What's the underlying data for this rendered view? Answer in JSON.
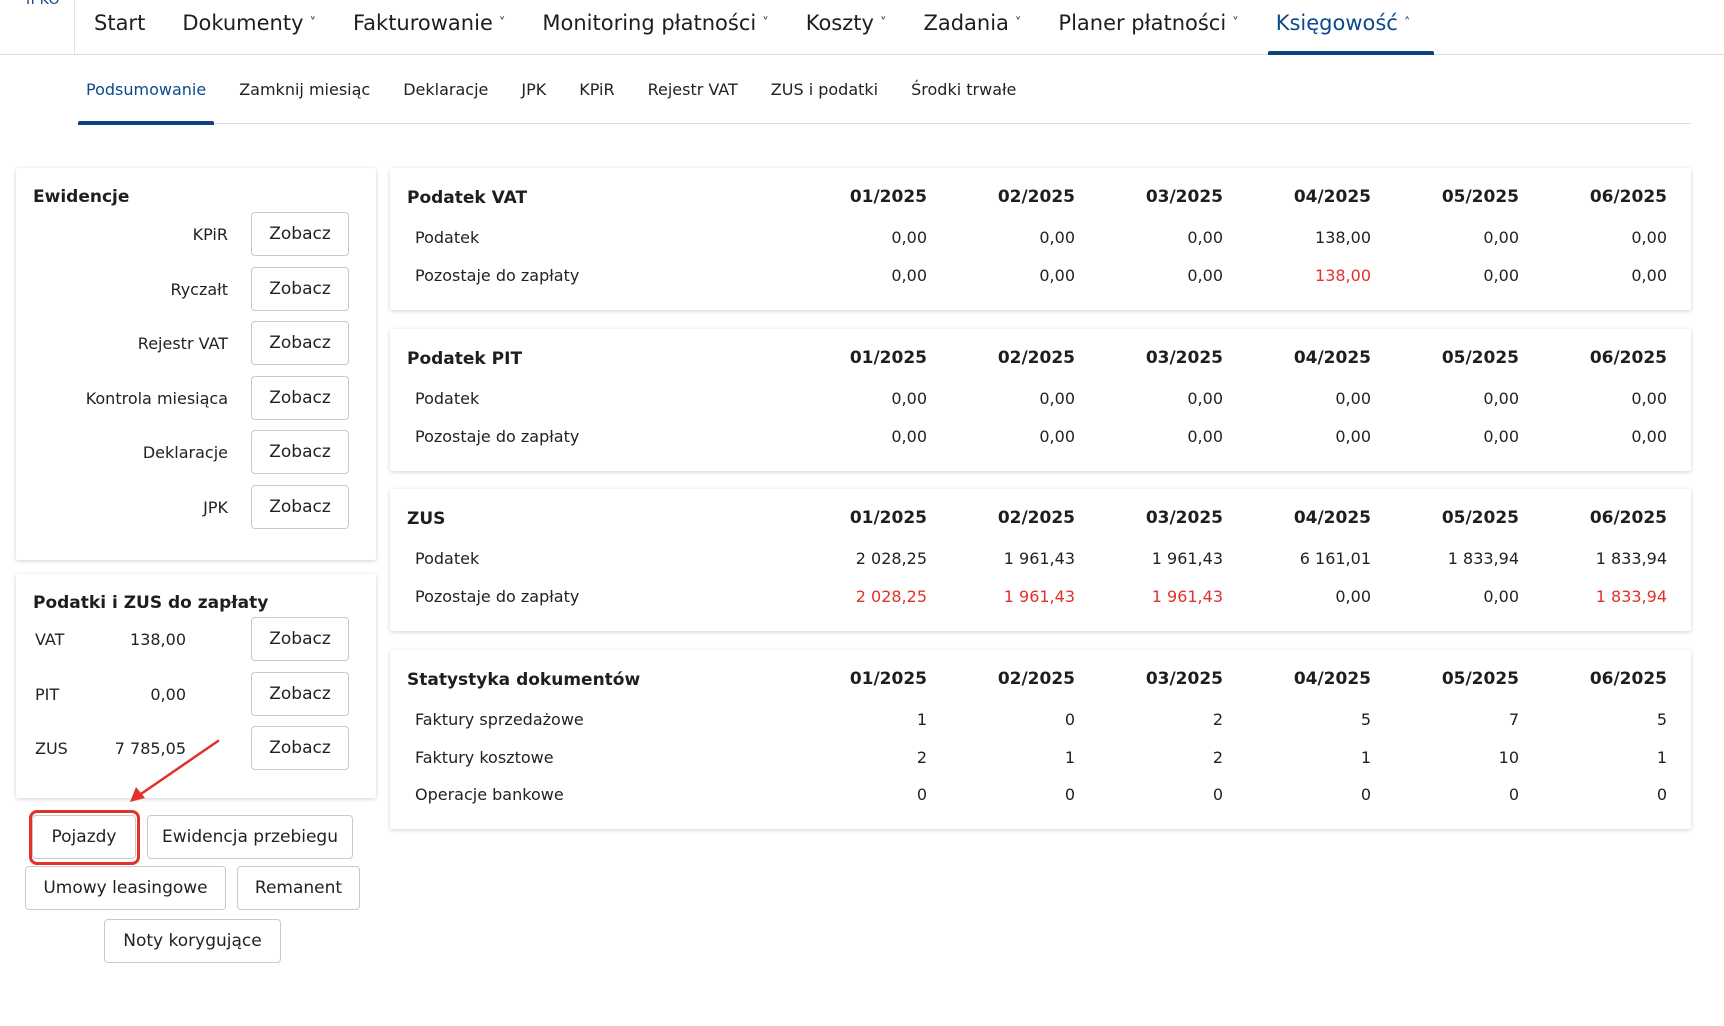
{
  "logo": "IPKO",
  "topnav": [
    {
      "label": "Start",
      "chevron": false,
      "active": false
    },
    {
      "label": "Dokumenty",
      "chevron": true,
      "active": false
    },
    {
      "label": "Fakturowanie",
      "chevron": true,
      "active": false
    },
    {
      "label": "Monitoring płatności",
      "chevron": true,
      "active": false
    },
    {
      "label": "Koszty",
      "chevron": true,
      "active": false
    },
    {
      "label": "Zadania",
      "chevron": true,
      "active": false
    },
    {
      "label": "Planer płatności",
      "chevron": true,
      "active": false
    },
    {
      "label": "Księgowość",
      "chevron": true,
      "active": true
    }
  ],
  "subnav": [
    {
      "label": "Podsumowanie",
      "active": true
    },
    {
      "label": "Zamknij miesiąc",
      "active": false
    },
    {
      "label": "Deklaracje",
      "active": false
    },
    {
      "label": "JPK",
      "active": false
    },
    {
      "label": "KPiR",
      "active": false
    },
    {
      "label": "Rejestr VAT",
      "active": false
    },
    {
      "label": "ZUS i podatki",
      "active": false
    },
    {
      "label": "Środki trwałe",
      "active": false
    }
  ],
  "ewidencje": {
    "title": "Ewidencje",
    "items": [
      {
        "label": "KPiR",
        "button": "Zobacz"
      },
      {
        "label": "Ryczałt",
        "button": "Zobacz"
      },
      {
        "label": "Rejestr VAT",
        "button": "Zobacz"
      },
      {
        "label": "Kontrola miesiąca",
        "button": "Zobacz"
      },
      {
        "label": "Deklaracje",
        "button": "Zobacz"
      },
      {
        "label": "JPK",
        "button": "Zobacz"
      }
    ]
  },
  "podatki": {
    "title": "Podatki i ZUS do zapłaty",
    "items": [
      {
        "label": "VAT",
        "value": "138,00",
        "button": "Zobacz"
      },
      {
        "label": "PIT",
        "value": "0,00",
        "button": "Zobacz"
      },
      {
        "label": "ZUS",
        "value": "7 785,05",
        "button": "Zobacz"
      }
    ]
  },
  "buttons": {
    "pojazdy": "Pojazdy",
    "ewidencja_przebiegu": "Ewidencja przebiegu",
    "umowy_leasingowe": "Umowy leasingowe",
    "remanent": "Remanent",
    "noty_korygujace": "Noty korygujące"
  },
  "months": [
    "01/2025",
    "02/2025",
    "03/2025",
    "04/2025",
    "05/2025",
    "06/2025"
  ],
  "tables": [
    {
      "title": "Podatek VAT",
      "rows": [
        {
          "label": "Podatek",
          "values": [
            "0,00",
            "0,00",
            "0,00",
            "138,00",
            "0,00",
            "0,00"
          ],
          "red": [
            false,
            false,
            false,
            false,
            false,
            false
          ]
        },
        {
          "label": "Pozostaje do zapłaty",
          "values": [
            "0,00",
            "0,00",
            "0,00",
            "138,00",
            "0,00",
            "0,00"
          ],
          "red": [
            false,
            false,
            false,
            true,
            false,
            false
          ]
        }
      ]
    },
    {
      "title": "Podatek PIT",
      "rows": [
        {
          "label": "Podatek",
          "values": [
            "0,00",
            "0,00",
            "0,00",
            "0,00",
            "0,00",
            "0,00"
          ],
          "red": [
            false,
            false,
            false,
            false,
            false,
            false
          ]
        },
        {
          "label": "Pozostaje do zapłaty",
          "values": [
            "0,00",
            "0,00",
            "0,00",
            "0,00",
            "0,00",
            "0,00"
          ],
          "red": [
            false,
            false,
            false,
            false,
            false,
            false
          ]
        }
      ]
    },
    {
      "title": "ZUS",
      "rows": [
        {
          "label": "Podatek",
          "values": [
            "2 028,25",
            "1 961,43",
            "1 961,43",
            "6 161,01",
            "1 833,94",
            "1 833,94"
          ],
          "red": [
            false,
            false,
            false,
            false,
            false,
            false
          ]
        },
        {
          "label": "Pozostaje do zapłaty",
          "values": [
            "2 028,25",
            "1 961,43",
            "1 961,43",
            "0,00",
            "0,00",
            "1 833,94"
          ],
          "red": [
            true,
            true,
            true,
            false,
            false,
            true
          ]
        }
      ]
    },
    {
      "title": "Statystyka dokumentów",
      "rows": [
        {
          "label": "Faktury sprzedażowe",
          "values": [
            "1",
            "0",
            "2",
            "5",
            "7",
            "5"
          ],
          "red": [
            false,
            false,
            false,
            false,
            false,
            false
          ]
        },
        {
          "label": "Faktury kosztowe",
          "values": [
            "2",
            "1",
            "2",
            "1",
            "10",
            "1"
          ],
          "red": [
            false,
            false,
            false,
            false,
            false,
            false
          ]
        },
        {
          "label": "Operacje bankowe",
          "values": [
            "0",
            "0",
            "0",
            "0",
            "0",
            "0"
          ],
          "red": [
            false,
            false,
            false,
            false,
            false,
            false
          ]
        }
      ]
    }
  ],
  "colors": {
    "accent": "#0b4a8f",
    "negative": "#e0312b",
    "highlight": "#e0312b"
  }
}
